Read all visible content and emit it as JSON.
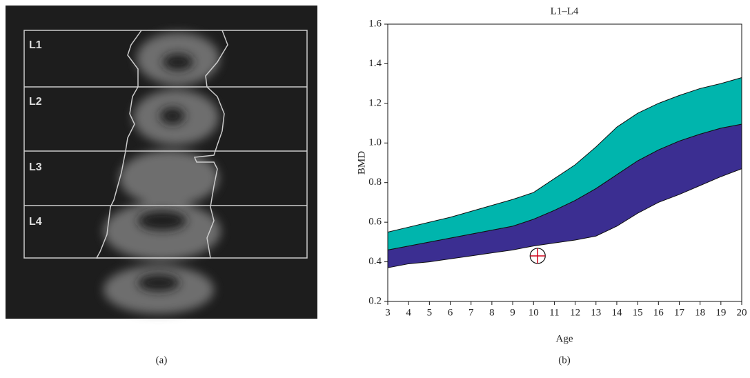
{
  "image_panel": {
    "regions": [
      "L1",
      "L2",
      "L3",
      "L4"
    ]
  },
  "captions": [
    "(a)",
    "(b)"
  ],
  "chart_data": {
    "type": "band",
    "title": "L1–L4",
    "x_label": "Age",
    "y_label": "BMD",
    "x": [
      3,
      4,
      5,
      6,
      7,
      8,
      9,
      10,
      11,
      12,
      13,
      14,
      15,
      16,
      17,
      18,
      19,
      20
    ],
    "bands": [
      {
        "color": "#3b2e91",
        "lower": [
          0.37,
          0.39,
          0.4,
          0.415,
          0.43,
          0.445,
          0.46,
          0.48,
          0.495,
          0.51,
          0.53,
          0.58,
          0.645,
          0.7,
          0.74,
          0.785,
          0.83,
          0.87
        ],
        "upper": [
          0.46,
          0.48,
          0.5,
          0.52,
          0.54,
          0.56,
          0.58,
          0.615,
          0.66,
          0.71,
          0.77,
          0.84,
          0.91,
          0.965,
          1.01,
          1.045,
          1.075,
          1.095
        ]
      },
      {
        "color": "#00b5ad",
        "lower": [
          0.46,
          0.48,
          0.5,
          0.52,
          0.54,
          0.56,
          0.58,
          0.615,
          0.66,
          0.71,
          0.77,
          0.84,
          0.91,
          0.965,
          1.01,
          1.045,
          1.075,
          1.095
        ],
        "upper": [
          0.55,
          0.575,
          0.6,
          0.625,
          0.655,
          0.685,
          0.715,
          0.75,
          0.82,
          0.89,
          0.98,
          1.08,
          1.15,
          1.2,
          1.24,
          1.275,
          1.3,
          1.33
        ]
      }
    ],
    "point": {
      "x": 10.2,
      "y": 0.43,
      "color": "#d0021b"
    },
    "xlim": [
      3,
      20
    ],
    "xticks": [
      3,
      4,
      5,
      6,
      7,
      8,
      9,
      10,
      11,
      12,
      13,
      14,
      15,
      16,
      17,
      18,
      19,
      20
    ],
    "ylim": [
      0.2,
      1.6
    ],
    "yticks": [
      0.2,
      0.4,
      0.6,
      0.8,
      {
        "value": 1.0,
        "label": "1.0"
      },
      1.2,
      1.4,
      1.6
    ]
  }
}
